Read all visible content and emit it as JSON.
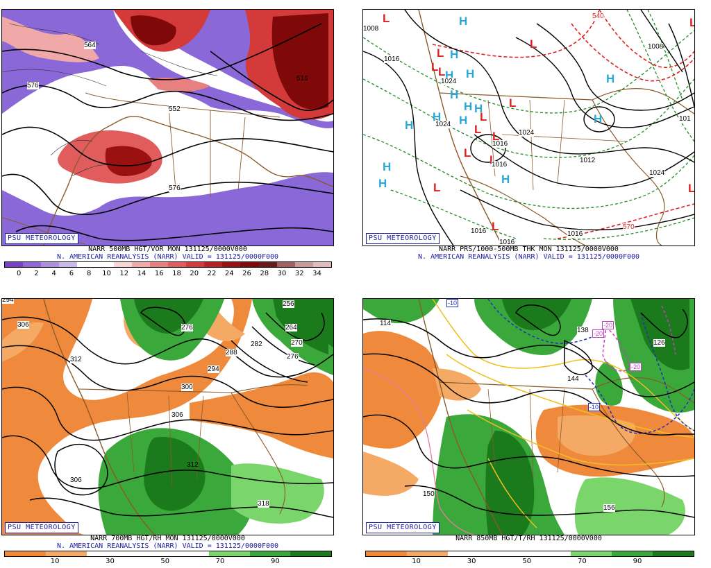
{
  "panels": [
    {
      "id": "vor500",
      "badge": "PSU METEOROLOGY",
      "caption_line1": "NARR 500MB HGT/VOR MON 131125/0000V000",
      "caption_line2": "N. AMERICAN REANALYSIS (NARR) VALID = 131125/0000F000",
      "contour_labels": [
        "564",
        "576",
        "516",
        "552",
        "576"
      ],
      "colorbar": {
        "colors": [
          "#7a3fc7",
          "#9366d6",
          "#ad8fe0",
          "#c8b7ea",
          "#ffffff",
          "#ffffff",
          "#f7d6d6",
          "#f0a8a8",
          "#e98080",
          "#e15c5c",
          "#d43a3a",
          "#b82222",
          "#9b1111",
          "#7f0808",
          "#6b1a1a",
          "#a36060",
          "#c89a9a",
          "#e0bcbc"
        ],
        "ticks": [
          "0",
          "2",
          "4",
          "6",
          "8",
          "10",
          "12",
          "14",
          "16",
          "18",
          "20",
          "22",
          "24",
          "26",
          "28",
          "30",
          "32",
          "34"
        ]
      }
    },
    {
      "id": "prs",
      "badge": "PSU METEOROLOGY",
      "caption_line1": "NARR PRS/1000-500MB THK MON 131125/0000V000",
      "caption_line2": "N. AMERICAN REANALYSIS (NARR) VALID = 131125/0000F000",
      "contour_labels": [
        "1008",
        "1016",
        "1024",
        "1024",
        "1016",
        "1016",
        "1012",
        "1024",
        "1016",
        "1016",
        "570",
        "540",
        "1008",
        "101",
        "1024",
        "1016"
      ],
      "highs": 14,
      "lows": 13
    },
    {
      "id": "rh700",
      "badge": "PSU METEOROLOGY",
      "caption_line1": "NARR 700MB HGT/RH MON 131125/0000V000",
      "caption_line2": "N. AMERICAN REANALYSIS (NARR) VALID = 131125/0000F000",
      "contour_labels": [
        "294",
        "306",
        "312",
        "276",
        "256",
        "264",
        "270",
        "282",
        "288",
        "294",
        "276",
        "300",
        "306",
        "312",
        "306",
        "318"
      ],
      "colorbar": {
        "colors": [
          "#ef8a3c",
          "#f4a965",
          "#ffffff",
          "#ffffff",
          "#ffffff",
          "#7ad66a",
          "#3aa83a",
          "#1b7a1b"
        ],
        "ticks": [
          "10",
          "30",
          "50",
          "70",
          "90"
        ]
      }
    },
    {
      "id": "rh850",
      "badge": "PSU METEOROLOGY",
      "caption_line1": "NARR 850MB HGT/T/RH 131125/0000V000",
      "caption_line2": "",
      "contour_labels": [
        "114",
        "-10",
        "-20",
        "-20",
        "-20",
        "126",
        "138",
        "144",
        "-10",
        "150",
        "156"
      ],
      "colorbar": {
        "colors": [
          "#ef8a3c",
          "#f4a965",
          "#ffffff",
          "#ffffff",
          "#ffffff",
          "#7ad66a",
          "#3aa83a",
          "#1b7a1b"
        ],
        "ticks": [
          "10",
          "30",
          "50",
          "70",
          "90"
        ]
      }
    }
  ]
}
